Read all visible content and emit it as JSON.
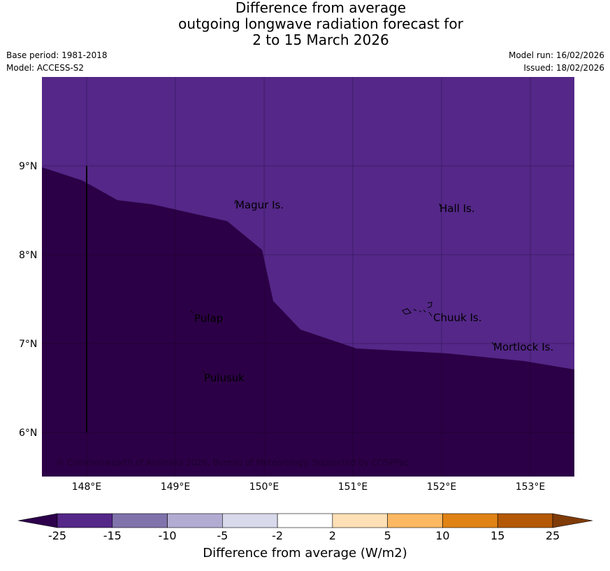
{
  "title": {
    "line1": "Difference from average",
    "line2": "outgoing longwave radiation forecast for",
    "line3": "2 to 15 March 2026"
  },
  "meta": {
    "base_period": "Base period: 1981-2018",
    "model": "Model: ACCESS-S2",
    "model_run": "Model run: 16/02/2026",
    "issued": "Issued: 18/02/2026"
  },
  "map": {
    "lon_ticks": [
      "148°E",
      "149°E",
      "150°E",
      "151°E",
      "152°E",
      "153°E"
    ],
    "lat_ticks": [
      "9°N",
      "8°N",
      "7°N",
      "6°N"
    ],
    "places": [
      "Magur Is.",
      "Hall Is.",
      "Pulap",
      "Chuuk Is.",
      "Mortlock Is.",
      "Pulusuk"
    ],
    "attribution": "© Commonwealth of Australia 2026, Bureau of Meteorology. Supported by COSPPac",
    "colors": {
      "region_dark": "#2c0046",
      "region_light": "#542788",
      "grid": "#000000"
    }
  },
  "colorbar": {
    "labels": [
      "-25",
      "-15",
      "-10",
      "-5",
      "-2",
      "2",
      "5",
      "10",
      "15",
      "25"
    ],
    "colors": [
      "#542788",
      "#8073ac",
      "#b2abd2",
      "#d8daeb",
      "#ffffff",
      "#fee0b6",
      "#fdb863",
      "#e08214",
      "#b35806"
    ],
    "under_color": "#2d004b",
    "over_color": "#7f3b08",
    "title": "Difference from average (W/m2)"
  }
}
